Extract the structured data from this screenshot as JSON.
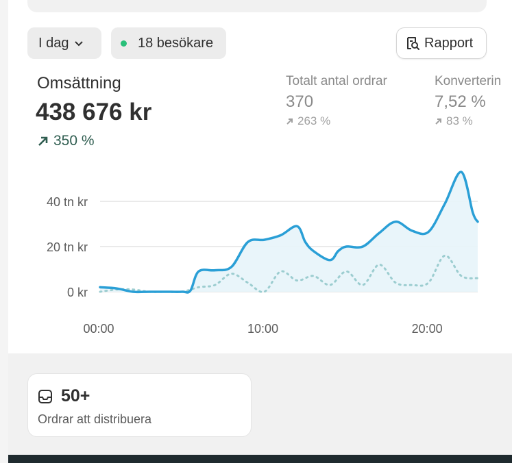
{
  "filters": {
    "date_label": "I dag",
    "visitors_label": "18 besökare"
  },
  "report_button": {
    "label": "Rapport"
  },
  "main_metric": {
    "label": "Omsättning",
    "value": "438 676 kr",
    "change": "350 %"
  },
  "sub_metrics": [
    {
      "label": "Totalt antal ordrar",
      "value": "370",
      "change": "263 %"
    },
    {
      "label": "Konverterin",
      "value": "7,52 %",
      "change": "83 %"
    }
  ],
  "chart_data": {
    "type": "line",
    "y_tick_labels": [
      "40 tn kr",
      "20 tn kr",
      "0 kr"
    ],
    "x_tick_labels": [
      "00:00",
      "10:00",
      "20:00"
    ],
    "ylim": [
      0,
      50000
    ],
    "xlim": [
      0,
      23
    ],
    "grid": true,
    "series": [
      {
        "values_x": [
          0,
          1,
          2,
          3,
          4,
          5,
          5.5,
          6,
          7,
          8,
          9,
          10,
          11,
          12,
          12.5,
          13,
          14,
          14.5,
          15,
          16,
          17,
          18,
          19,
          20,
          21,
          22,
          22.7,
          23
        ],
        "values_y": [
          2000,
          1500,
          0,
          0,
          0,
          0,
          500,
          9000,
          9500,
          11000,
          22000,
          23000,
          25000,
          29000,
          22000,
          18000,
          14000,
          18000,
          20000,
          20000,
          26000,
          31000,
          27000,
          26500,
          39000,
          53000,
          35000,
          31000
        ]
      },
      {
        "values_x": [
          0,
          1,
          2,
          3,
          4,
          5,
          6,
          7,
          8,
          9,
          10,
          11,
          12,
          13,
          14,
          15,
          16,
          17,
          18,
          19,
          20,
          21,
          22,
          23
        ],
        "values_y": [
          0,
          1000,
          1000,
          0,
          0,
          0,
          2000,
          3000,
          8000,
          4000,
          0,
          9000,
          5000,
          7000,
          3000,
          9000,
          3000,
          12000,
          4000,
          3000,
          4000,
          16000,
          7000,
          6000
        ]
      }
    ],
    "colors": {
      "primary": "#2a9fd6",
      "secondary": "#9ccdd0",
      "fill": "#e7f4f9",
      "grid": "#e3e3e3"
    }
  },
  "orders_card": {
    "count": "50+",
    "label": "Ordrar att distribuera"
  },
  "icons": {
    "date_chevron": "chevron-down-icon",
    "visitors_dot": "green-dot-icon",
    "report": "report-search-icon",
    "trend_up": "arrow-up-right-icon",
    "inbox": "inbox-icon"
  }
}
